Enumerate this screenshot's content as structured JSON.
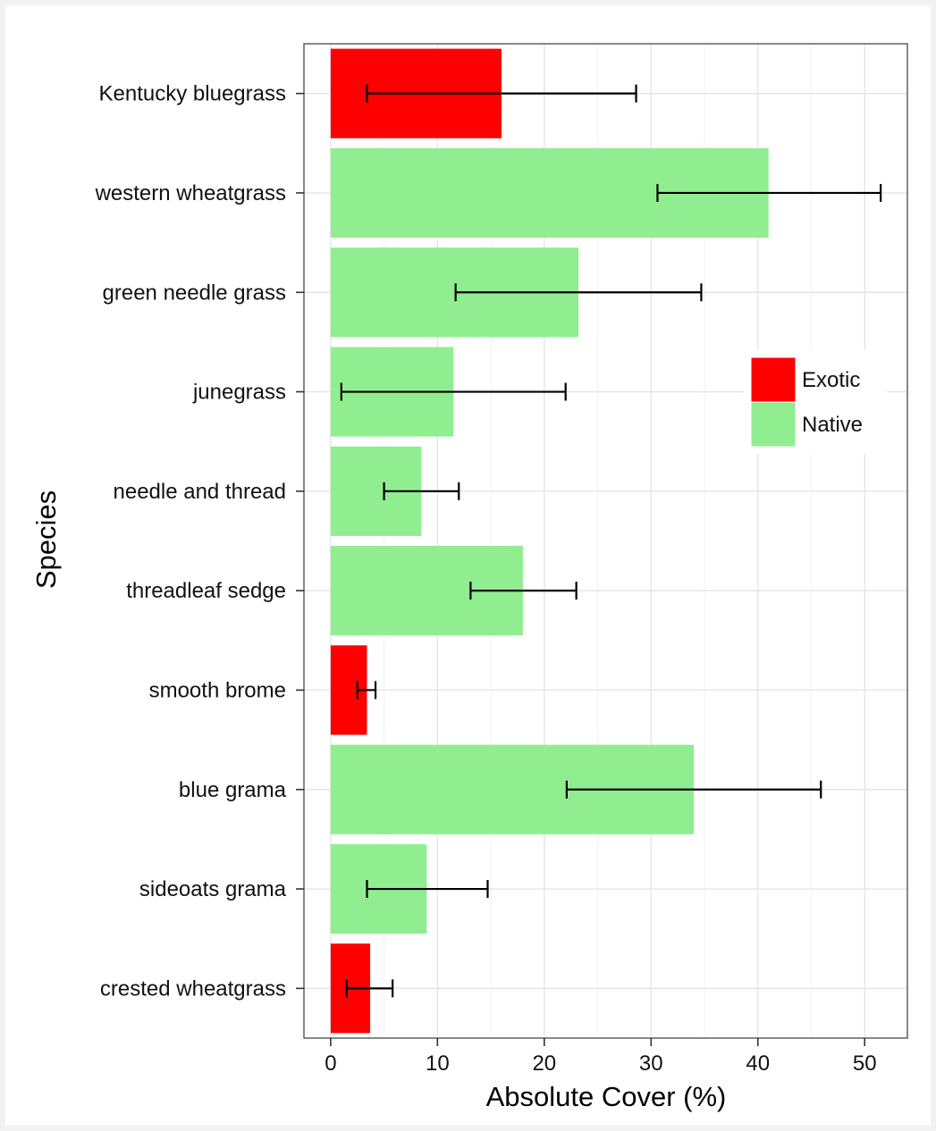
{
  "chart_data": {
    "type": "bar",
    "orientation": "horizontal",
    "xlabel": "Absolute Cover (%)",
    "ylabel": "Species",
    "xlim": [
      -2.5,
      54
    ],
    "xticks": [
      0,
      10,
      20,
      30,
      40,
      50
    ],
    "grid": true,
    "legend_position": "right",
    "legend": [
      {
        "label": "Exotic",
        "color": "#ff0000"
      },
      {
        "label": "Native",
        "color": "#90ee90"
      }
    ],
    "categories": [
      "Kentucky bluegrass",
      "western wheatgrass",
      "green needle grass",
      "junegrass",
      "needle and thread",
      "threadleaf sedge",
      "smooth brome",
      "blue grama",
      "sideoats grama",
      "crested wheatgrass"
    ],
    "values": [
      16.0,
      41.0,
      23.2,
      11.5,
      8.5,
      18.0,
      3.4,
      34.0,
      9.0,
      3.7
    ],
    "groups": [
      "Exotic",
      "Native",
      "Native",
      "Native",
      "Native",
      "Native",
      "Exotic",
      "Native",
      "Native",
      "Exotic"
    ],
    "error_low": [
      3.4,
      30.6,
      11.7,
      1.0,
      5.0,
      13.1,
      2.5,
      22.1,
      3.4,
      1.5
    ],
    "error_high": [
      28.6,
      51.5,
      34.7,
      22.0,
      12.0,
      23.0,
      4.2,
      45.9,
      14.7,
      5.8
    ]
  }
}
